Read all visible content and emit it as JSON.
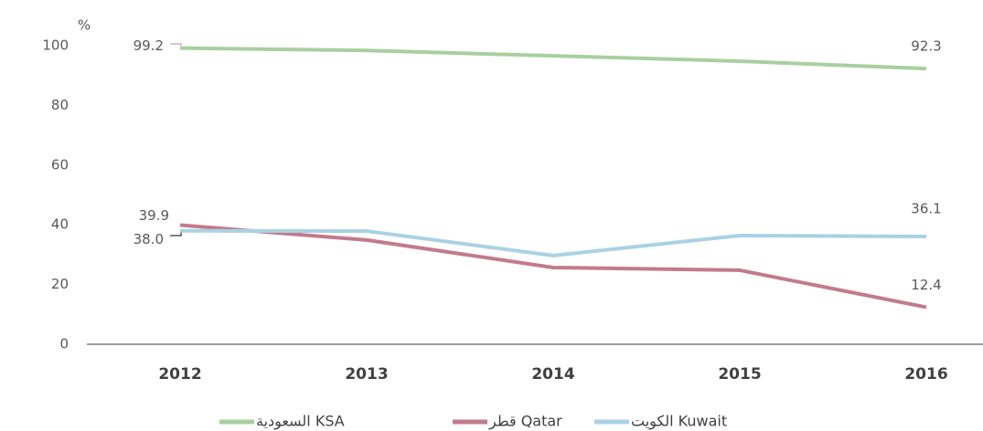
{
  "chart_data": {
    "type": "line",
    "ylabel": "%",
    "categories": [
      "2012",
      "2013",
      "2014",
      "2015",
      "2016"
    ],
    "ylim": [
      0,
      100
    ],
    "yticks": [
      0,
      20,
      40,
      60,
      80,
      100
    ],
    "series": [
      {
        "name": "السعودية KSA",
        "color": "#a9cf9f",
        "values": [
          99.2,
          98.4,
          96.6,
          94.8,
          92.3
        ],
        "value_labels": [
          "99.2",
          null,
          null,
          null,
          "92.3"
        ]
      },
      {
        "name": "قطر Qatar",
        "color": "#c27a8c",
        "values": [
          39.9,
          34.9,
          25.7,
          24.8,
          12.4
        ],
        "value_labels": [
          "39.9",
          null,
          null,
          null,
          "12.4"
        ]
      },
      {
        "name": "الكويت Kuwait",
        "color": "#a9d2e4",
        "values": [
          38.0,
          37.9,
          29.7,
          36.4,
          36.1
        ],
        "value_labels": [
          "38.0",
          null,
          null,
          null,
          "36.1"
        ]
      }
    ]
  }
}
